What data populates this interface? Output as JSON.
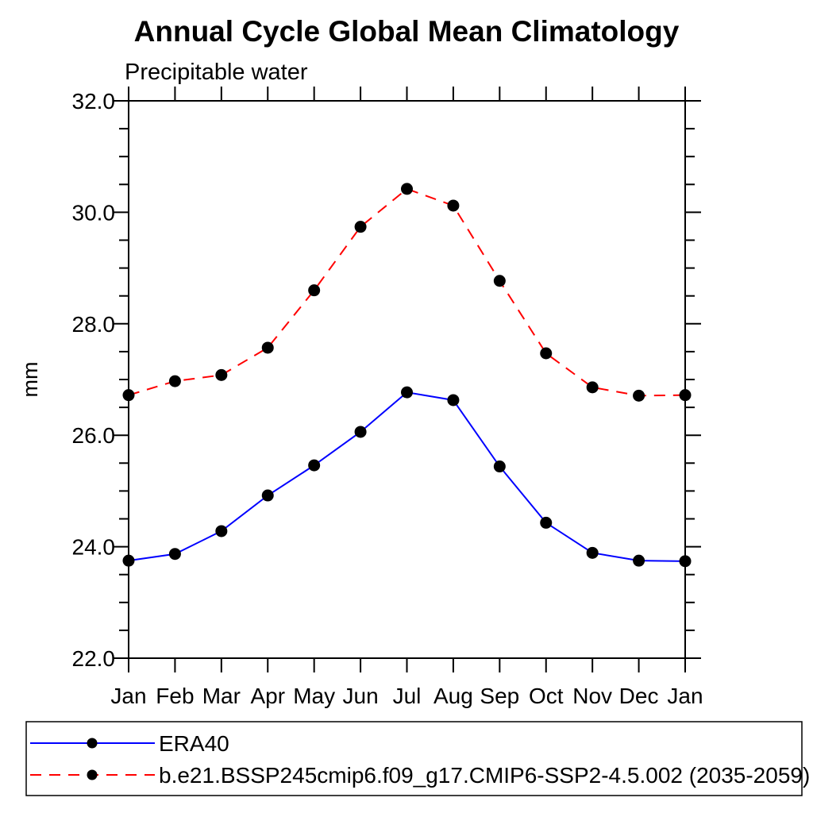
{
  "chart_data": {
    "type": "line",
    "title": "Annual Cycle Global Mean Climatology",
    "subtitle": "Precipitable water",
    "ylabel": "mm",
    "x_categories": [
      "Jan",
      "Feb",
      "Mar",
      "Apr",
      "May",
      "Jun",
      "Jul",
      "Aug",
      "Sep",
      "Oct",
      "Nov",
      "Dec",
      "Jan"
    ],
    "ylim": [
      22.0,
      32.0
    ],
    "ytick_labels": [
      "22.0",
      "24.0",
      "26.0",
      "28.0",
      "30.0",
      "32.0"
    ],
    "ytick_major_interval": 2.0,
    "ytick_minor_interval": 0.5,
    "grid": false,
    "legend_position": "bottom",
    "axis_color": "#000000",
    "marker_color": "#000000",
    "series": [
      {
        "name": "ERA40",
        "color": "#0000ff",
        "line_style": "solid",
        "marker": "filled-circle",
        "values": [
          23.75,
          23.87,
          24.28,
          24.92,
          25.46,
          26.06,
          26.77,
          26.63,
          25.44,
          24.43,
          23.89,
          23.75,
          23.74
        ]
      },
      {
        "name": "b.e21.BSSP245cmip6.f09_g17.CMIP6-SSP2-4.5.002 (2035-2059)",
        "color": "#ff0000",
        "line_style": "dashed",
        "marker": "filled-circle",
        "values": [
          26.72,
          26.97,
          27.08,
          27.57,
          28.6,
          29.74,
          30.42,
          30.12,
          28.77,
          27.47,
          26.86,
          26.71,
          26.72
        ]
      }
    ]
  }
}
